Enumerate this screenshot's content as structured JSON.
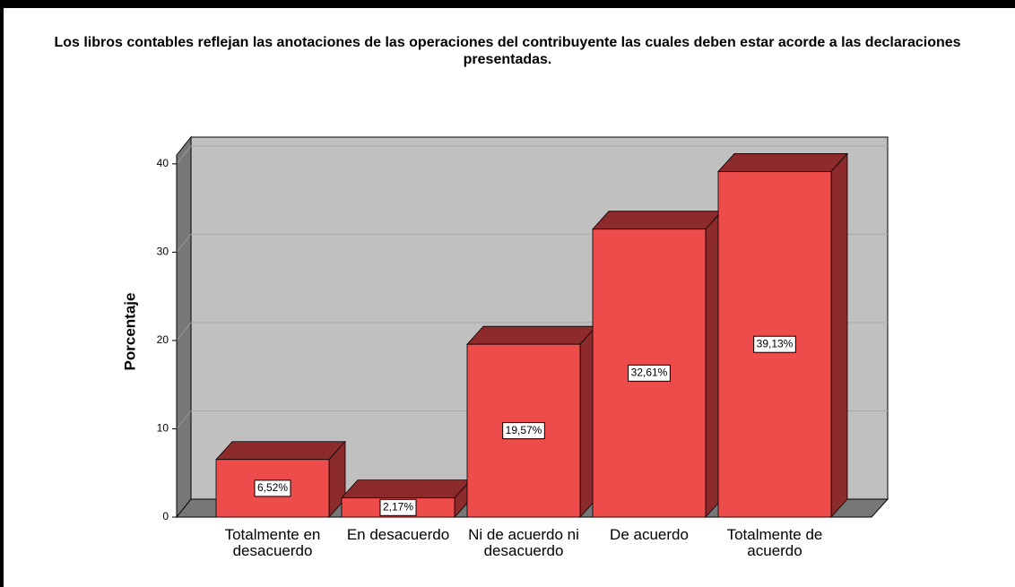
{
  "chart_data": {
    "type": "bar3d",
    "title": "Los libros contables reflejan las anotaciones de las operaciones del contribuyente las cuales deben estar acorde a las declaraciones presentadas.",
    "y_label": "Porcentaje",
    "categories": [
      "Totalmente en desacuerdo",
      "En desacuerdo",
      "Ni de acuerdo ni desacuerdo",
      "De acuerdo",
      "Totalmente de acuerdo"
    ],
    "values": [
      6.52,
      2.17,
      19.57,
      32.61,
      39.13
    ],
    "value_labels": [
      "6,52%",
      "2,17%",
      "19,57%",
      "32,61%",
      "39,13%"
    ],
    "color": "#ee4b4b",
    "side_color": "#8c2a2c",
    "ylim": [
      0,
      41
    ],
    "yticks": [
      0,
      10,
      20,
      30,
      40
    ],
    "grid": true
  }
}
